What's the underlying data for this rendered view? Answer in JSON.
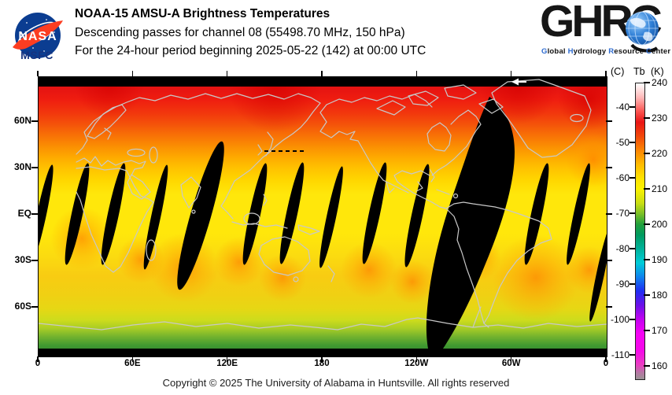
{
  "header": {
    "nasa": {
      "name": "NASA",
      "msfc": "MSFC"
    },
    "title": "NOAA-15 AMSU-A Brightness Temperatures",
    "subtitle1": "Descending passes for channel 08 (55498.70 MHz, 150 hPa)",
    "subtitle2": "For the 24-hour period beginning 2025-05-22 (142) at 00:00 UTC",
    "ghrc": {
      "acronym": "GHRC",
      "cap_color": "#2f6cd0",
      "tagline": [
        {
          "cap": "G",
          "rest": "lobal"
        },
        {
          "cap": "H",
          "rest": "ydrology"
        },
        {
          "cap": "R",
          "rest": "esource"
        },
        {
          "cap": "C",
          "rest": "enter"
        }
      ]
    }
  },
  "map": {
    "lat_ticks": [
      {
        "label": "60N",
        "lat": 60
      },
      {
        "label": "30N",
        "lat": 30
      },
      {
        "label": "EQ",
        "lat": 0
      },
      {
        "label": "30S",
        "lat": -30
      },
      {
        "label": "60S",
        "lat": -60
      }
    ],
    "lon_ticks": [
      {
        "label": "0",
        "lon": 0
      },
      {
        "label": "60E",
        "lon": 60
      },
      {
        "label": "120E",
        "lon": 120
      },
      {
        "label": "180",
        "lon": 180
      },
      {
        "label": "120W",
        "lon": 240
      },
      {
        "label": "60W",
        "lon": 300
      },
      {
        "label": "0",
        "lon": 360
      }
    ],
    "direction_arrow": "←",
    "no_data_color": "#000000",
    "coastline_color": "#c8c8c8"
  },
  "colorbar": {
    "title_c": "(C)",
    "title_tb": "Tb",
    "title_k": "(K)",
    "kelvin_ticks": [
      240,
      230,
      220,
      210,
      200,
      190,
      180,
      170,
      160
    ],
    "celsius_ticks": [
      -40,
      -50,
      -60,
      -70,
      -80,
      -90,
      -100,
      -110
    ]
  },
  "footer": {
    "copyright": "Copyright © 2025 The University of Alabama in Huntsville.  All rights reserved"
  },
  "chart_data": {
    "type": "heatmap",
    "title": "NOAA-15 AMSU-A Brightness Temperatures",
    "subtitle": "Descending passes for channel 08 (55498.70 MHz, 150 hPa)",
    "period": "24-hour period beginning 2025-05-22 (142) at 00:00 UTC",
    "satellite": "NOAA-15",
    "instrument": "AMSU-A",
    "channel": "08",
    "frequency_mhz": 55498.7,
    "pressure_level_hpa": 150,
    "projection": "equirectangular world map, 0E at left edge through 180 to 0 at right edge",
    "x_tick_labels": [
      "0",
      "60E",
      "120E",
      "180",
      "120W",
      "60W",
      "0"
    ],
    "y_tick_labels": [
      "60N",
      "30N",
      "EQ",
      "30S",
      "60S"
    ],
    "colorbar": {
      "label_left": "(C)",
      "label_right": "Tb (K)",
      "kelvin_tick_values": [
        240,
        230,
        220,
        210,
        200,
        190,
        180,
        170,
        160
      ],
      "celsius_tick_values": [
        -40,
        -50,
        -60,
        -70,
        -80,
        -90,
        -100,
        -110
      ],
      "colors_top_to_bottom": [
        "white",
        "red",
        "orange",
        "yellow",
        "green",
        "teal",
        "cyan",
        "blue",
        "violet",
        "magenta",
        "gray"
      ]
    },
    "field_description": {
      "high_northern_latitudes": "red (~230-240 K)",
      "mid_northern_latitudes": "orange (~218-228 K)",
      "tropics_and_subtropics": "yellow (~210-215 K) with scattered orange patches",
      "southern_high_latitudes": "yellow-green to green over Antarctica (~200-208 K)",
      "no_data": "black lens-shaped gaps between descending swaths across the tropics; one wide missing swath over the Americas near 60W-100W; black strips along top and bottom (polar) edges",
      "annotation": "white left-pointing arrow in top black strip near 60W indicating pass direction"
    }
  }
}
